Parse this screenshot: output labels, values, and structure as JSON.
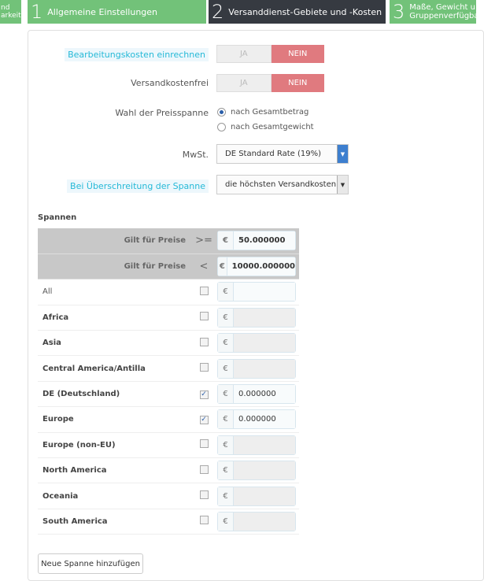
{
  "steps": {
    "prev_partial": "nd\narkeit",
    "items": [
      {
        "num": "1",
        "label": "Allgemeine Einstellungen"
      },
      {
        "num": "2",
        "label": "Versanddienst-Gebiete und -Kosten"
      },
      {
        "num": "3",
        "label": "Maße, Gewicht u\nGruppenverfügba"
      }
    ]
  },
  "form": {
    "handling": {
      "label": "Bearbeitungskosten einrechnen",
      "yes": "JA",
      "no": "NEIN",
      "value": "NEIN"
    },
    "free": {
      "label": "Versandkostenfrei",
      "yes": "JA",
      "no": "NEIN",
      "value": "NEIN"
    },
    "range": {
      "label": "Wahl der Preisspanne",
      "options": [
        "nach Gesamtbetrag",
        "nach Gesamtgewicht"
      ],
      "selected": "nach Gesamtbetrag"
    },
    "tax": {
      "label": "MwSt.",
      "value": "DE Standard Rate (19%)"
    },
    "outofrange": {
      "label": "Bei Überschreitung der Spanne",
      "value": "die höchsten Versandkosten"
    }
  },
  "ranges": {
    "title": "Spannen",
    "hdr": [
      {
        "label": "Gilt für Preise",
        "op": ">=",
        "currency": "€",
        "value": "50.000000"
      },
      {
        "label": "Gilt für Preise",
        "op": "<",
        "currency": "€",
        "value": "10000.000000"
      }
    ],
    "zones": [
      {
        "name": "All",
        "checked": false,
        "value": "",
        "disabled": false,
        "bold": false
      },
      {
        "name": "Africa",
        "checked": false,
        "value": "",
        "disabled": true,
        "bold": true
      },
      {
        "name": "Asia",
        "checked": false,
        "value": "",
        "disabled": true,
        "bold": true
      },
      {
        "name": "Central America/Antilla",
        "checked": false,
        "value": "",
        "disabled": true,
        "bold": true
      },
      {
        "name": "DE (Deutschland)",
        "checked": true,
        "value": "0.000000",
        "disabled": false,
        "bold": true
      },
      {
        "name": "Europe",
        "checked": true,
        "value": "0.000000",
        "disabled": false,
        "bold": true
      },
      {
        "name": "Europe (non-EU)",
        "checked": false,
        "value": "",
        "disabled": true,
        "bold": true
      },
      {
        "name": "North America",
        "checked": false,
        "value": "",
        "disabled": true,
        "bold": true
      },
      {
        "name": "Oceania",
        "checked": false,
        "value": "",
        "disabled": true,
        "bold": true
      },
      {
        "name": "South America",
        "checked": false,
        "value": "",
        "disabled": true,
        "bold": true
      }
    ],
    "add_label": "Neue Spanne hinzufügen"
  }
}
